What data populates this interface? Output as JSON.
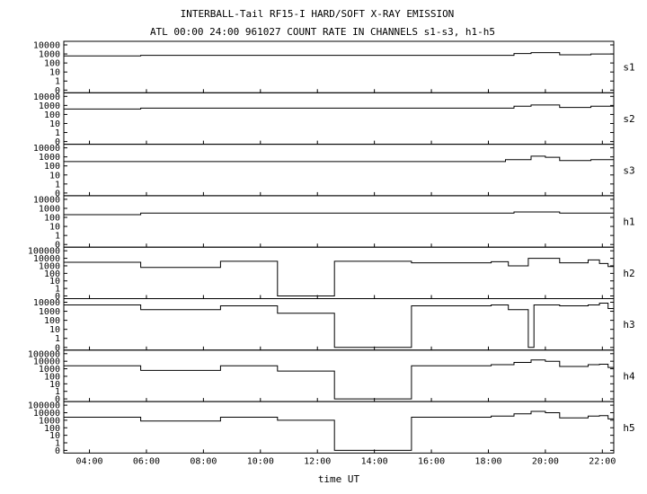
{
  "chart_data": {
    "type": "line",
    "title": "INTERBALL-Tail RF15-I HARD/SOFT X-RAY EMISSION",
    "subtitle": "ATL 00:00 24:00 961027  COUNT RATE IN CHANNELS s1-s3, h1-h5",
    "xlabel": "time UT",
    "x_ticks": [
      "04:00",
      "06:00",
      "08:00",
      "10:00",
      "12:00",
      "14:00",
      "16:00",
      "18:00",
      "20:00",
      "22:00"
    ],
    "x_tick_hours": [
      4,
      6,
      8,
      10,
      12,
      14,
      16,
      18,
      20,
      22
    ],
    "xlim_hours": [
      3.1,
      22.4
    ],
    "y_scale": "log",
    "panels": [
      {
        "name": "s1",
        "ylabels": [
          "10000",
          "1000",
          "100",
          "10",
          "1",
          "0"
        ],
        "ymax": 10000,
        "segments": [
          [
            3.1,
            5.8,
            600
          ],
          [
            5.8,
            18.9,
            700
          ],
          [
            18.9,
            19.5,
            1100
          ],
          [
            19.5,
            20.5,
            1400
          ],
          [
            20.5,
            21.6,
            800
          ],
          [
            21.6,
            22.4,
            1000
          ]
        ]
      },
      {
        "name": "s2",
        "ylabels": [
          "10000",
          "1000",
          "100",
          "10",
          "1",
          "0"
        ],
        "ymax": 10000,
        "segments": [
          [
            3.1,
            5.8,
            400
          ],
          [
            5.8,
            18.9,
            500
          ],
          [
            18.9,
            19.5,
            800
          ],
          [
            19.5,
            20.5,
            1100
          ],
          [
            20.5,
            21.6,
            600
          ],
          [
            21.6,
            22.4,
            800
          ]
        ]
      },
      {
        "name": "s3",
        "ylabels": [
          "10000",
          "1000",
          "100",
          "10",
          "1",
          "0"
        ],
        "ymax": 10000,
        "segments": [
          [
            3.1,
            18.6,
            300
          ],
          [
            18.6,
            19.5,
            500
          ],
          [
            19.5,
            20.0,
            1200
          ],
          [
            20.0,
            20.5,
            900
          ],
          [
            20.5,
            21.6,
            400
          ],
          [
            21.6,
            22.4,
            500
          ]
        ]
      },
      {
        "name": "h1",
        "ylabels": [
          "10000",
          "1000",
          "100",
          "10",
          "1",
          "0"
        ],
        "ymax": 10000,
        "segments": [
          [
            3.1,
            5.8,
            200
          ],
          [
            5.8,
            18.9,
            300
          ],
          [
            18.9,
            20.5,
            400
          ],
          [
            20.5,
            22.4,
            300
          ]
        ]
      },
      {
        "name": "h2",
        "ylabels": [
          "100000",
          "10000",
          "1000",
          "100",
          "10",
          "1",
          "0"
        ],
        "ymax": 100000,
        "segments": [
          [
            3.1,
            5.8,
            3000
          ],
          [
            5.8,
            8.6,
            600
          ],
          [
            8.6,
            10.6,
            4000
          ],
          [
            10.6,
            12.6,
            0
          ],
          [
            12.6,
            15.3,
            4000
          ],
          [
            15.3,
            18.1,
            2500
          ],
          [
            18.1,
            18.7,
            3500
          ],
          [
            18.7,
            19.4,
            1000
          ],
          [
            19.4,
            20.5,
            10000
          ],
          [
            20.5,
            21.5,
            2500
          ],
          [
            21.5,
            21.9,
            6000
          ],
          [
            21.9,
            22.2,
            2000
          ],
          [
            22.2,
            22.4,
            800
          ]
        ]
      },
      {
        "name": "h3",
        "ylabels": [
          "10000",
          "1000",
          "100",
          "10",
          "1",
          "0"
        ],
        "ymax": 10000,
        "segments": [
          [
            3.1,
            5.8,
            5000
          ],
          [
            5.8,
            8.6,
            1500
          ],
          [
            8.6,
            10.6,
            4000
          ],
          [
            10.6,
            12.6,
            600
          ],
          [
            12.6,
            15.3,
            0
          ],
          [
            15.3,
            18.1,
            4000
          ],
          [
            18.1,
            18.7,
            5000
          ],
          [
            18.7,
            19.4,
            1500
          ],
          [
            19.4,
            19.6,
            0
          ],
          [
            19.6,
            20.5,
            5000
          ],
          [
            20.5,
            21.5,
            4000
          ],
          [
            21.5,
            21.9,
            5000
          ],
          [
            21.9,
            22.2,
            8000
          ],
          [
            22.2,
            22.4,
            2000
          ]
        ]
      },
      {
        "name": "h4",
        "ylabels": [
          "100000",
          "10000",
          "1000",
          "100",
          "10",
          "1",
          "0"
        ],
        "ymax": 100000,
        "segments": [
          [
            3.1,
            5.8,
            2500
          ],
          [
            5.8,
            8.6,
            600
          ],
          [
            8.6,
            10.6,
            2500
          ],
          [
            10.6,
            12.6,
            500
          ],
          [
            12.6,
            15.3,
            0
          ],
          [
            15.3,
            18.1,
            2500
          ],
          [
            18.1,
            18.9,
            3500
          ],
          [
            18.9,
            19.5,
            7000
          ],
          [
            19.5,
            20.0,
            15000
          ],
          [
            20.0,
            20.5,
            10000
          ],
          [
            20.5,
            21.5,
            2000
          ],
          [
            21.5,
            21.9,
            3500
          ],
          [
            21.9,
            22.2,
            4000
          ],
          [
            22.2,
            22.4,
            1500
          ]
        ]
      },
      {
        "name": "h5",
        "ylabels": [
          "100000",
          "10000",
          "1000",
          "100",
          "10",
          "1",
          "0"
        ],
        "ymax": 100000,
        "segments": [
          [
            3.1,
            5.8,
            2500
          ],
          [
            5.8,
            8.6,
            800
          ],
          [
            8.6,
            10.6,
            2500
          ],
          [
            10.6,
            12.6,
            1000
          ],
          [
            12.6,
            15.3,
            0
          ],
          [
            15.3,
            18.1,
            2500
          ],
          [
            18.1,
            18.9,
            3500
          ],
          [
            18.9,
            19.5,
            7000
          ],
          [
            19.5,
            20.0,
            15000
          ],
          [
            20.0,
            20.5,
            10000
          ],
          [
            20.5,
            21.5,
            2000
          ],
          [
            21.5,
            21.9,
            3500
          ],
          [
            21.9,
            22.2,
            4000
          ],
          [
            22.2,
            22.4,
            1500
          ]
        ]
      }
    ]
  }
}
